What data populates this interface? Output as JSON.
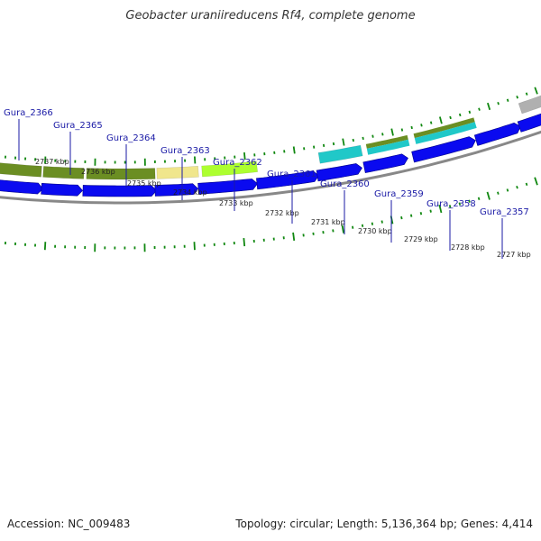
{
  "title": "Geobacter uraniireducens Rf4, complete genome",
  "footer": {
    "accession": "Accession: NC_009483",
    "summary": "Topology: circular; Length: 5,136,364 bp; Genes: 4,414"
  },
  "colors": {
    "cds_blue": "#0a0af0",
    "olive": "#6b8e23",
    "khaki": "#f0e68c",
    "greenyellow": "#adff2f",
    "cyan": "#20c8c8",
    "gray": "#b0b0b0",
    "backbone": "#888888",
    "tick_green": "#118811",
    "label_blue": "#1a1aa6"
  },
  "scale_ticks": [
    {
      "label": "2737 kbp",
      "kb": 2737
    },
    {
      "label": "2736 kbp",
      "kb": 2736
    },
    {
      "label": "2735 kbp",
      "kb": 2735
    },
    {
      "label": "2734 kbp",
      "kb": 2734
    },
    {
      "label": "2733 kbp",
      "kb": 2733
    },
    {
      "label": "2732 kbp",
      "kb": 2732
    },
    {
      "label": "2731 kbp",
      "kb": 2731
    },
    {
      "label": "2730 kbp",
      "kb": 2730
    },
    {
      "label": "2729 kbp",
      "kb": 2729
    },
    {
      "label": "2728 kbp",
      "kb": 2728
    },
    {
      "label": "2727 kbp",
      "kb": 2727
    }
  ],
  "genes": [
    {
      "name": "Gura_2366",
      "color_key": "olive"
    },
    {
      "name": "Gura_2365",
      "color_key": "olive"
    },
    {
      "name": "Gura_2364",
      "color_key": "olive"
    },
    {
      "name": "Gura_2363",
      "color_key": "khaki"
    },
    {
      "name": "Gura_2362",
      "color_key": "greenyellow"
    },
    {
      "name": "Gura_2361",
      "color_key": "none"
    },
    {
      "name": "Gura_2360",
      "color_key": "cyan"
    },
    {
      "name": "Gura_2359",
      "color_key": "cyan_olive"
    },
    {
      "name": "Gura_2358",
      "color_key": "cyan_olive"
    },
    {
      "name": "Gura_2357",
      "color_key": "gray"
    }
  ]
}
